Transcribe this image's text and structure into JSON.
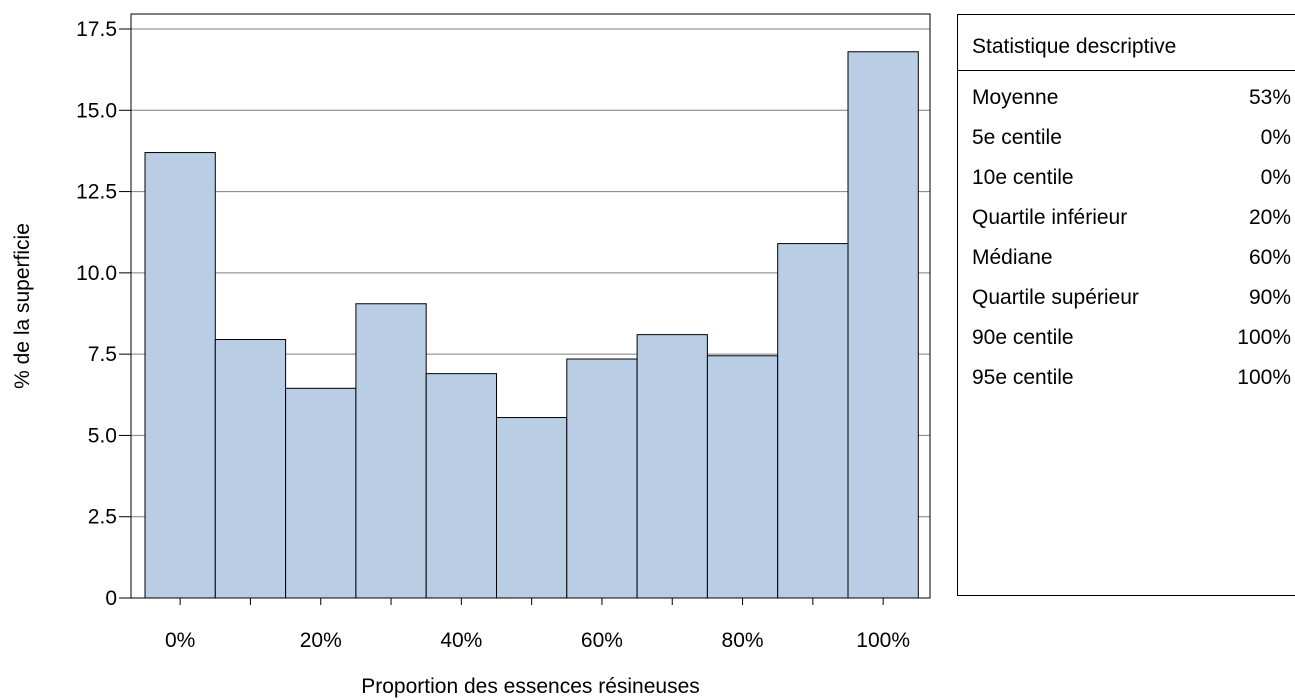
{
  "chart_data": {
    "type": "bar",
    "xlabel": "Proportion des essences résineuses",
    "ylabel": "% de la superficie",
    "categories": [
      "0%",
      "10%",
      "20%",
      "30%",
      "40%",
      "50%",
      "60%",
      "70%",
      "80%",
      "90%",
      "100%"
    ],
    "values": [
      13.7,
      7.95,
      6.45,
      9.05,
      6.9,
      5.55,
      7.35,
      8.1,
      7.45,
      10.9,
      16.8
    ],
    "x_tick_labels": [
      "0%",
      "20%",
      "40%",
      "60%",
      "80%",
      "100%"
    ],
    "y_ticks": [
      "0",
      "2.5",
      "5.0",
      "7.5",
      "10.0",
      "12.5",
      "15.0",
      "17.5"
    ],
    "ylim": [
      0,
      17.5
    ],
    "grid": "horizontal",
    "bar_color": "#b9cde5",
    "bar_edge_color": "#000000"
  },
  "stats": {
    "title": "Statistique descriptive",
    "rows": [
      {
        "label": "Moyenne",
        "value": "53%"
      },
      {
        "label": "5e centile",
        "value": "0%"
      },
      {
        "label": "10e centile",
        "value": "0%"
      },
      {
        "label": "Quartile inférieur",
        "value": "20%"
      },
      {
        "label": "Médiane",
        "value": "60%"
      },
      {
        "label": "Quartile supérieur",
        "value": "90%"
      },
      {
        "label": "90e centile",
        "value": "100%"
      },
      {
        "label": "95e centile",
        "value": "100%"
      }
    ]
  }
}
